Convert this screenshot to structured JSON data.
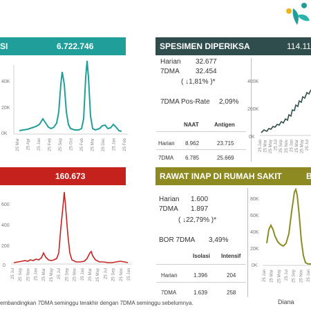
{
  "top_left": {
    "title": "SI",
    "value": "6.722.746",
    "color": "#1f9e9a",
    "yticks": [
      "40K",
      "20K",
      "0K"
    ],
    "xticks": [
      "25 Mar",
      "25 Apr",
      "25 Jan",
      "25 Feb",
      "25 Sep",
      "25 Oct",
      "25 Feb",
      "25 Mar",
      "25 Dec",
      "25 Jan",
      "25 Feb"
    ]
  },
  "top_right": {
    "title": "SPESIMEN DIPERIKSA",
    "value": "114.11",
    "harian_label": "Harian",
    "harian_value": "32.677",
    "dma_label": "7DMA",
    "dma_value": "32.454",
    "dma_change": "(   ↓1,81%   )*",
    "posrate_label": "7DMA Pos-Rate",
    "posrate_value": "2,09%",
    "table": {
      "headers": [
        "NAAT",
        "Antigen"
      ],
      "rows": [
        {
          "label": "Harian",
          "naat": "8.962",
          "antigen": "23.715"
        },
        {
          "label": "7DMA",
          "naat": "6.785",
          "antigen": "25.669"
        }
      ]
    },
    "yticks": [
      "400K",
      "200K",
      "0K"
    ],
    "xticks": [
      "25 Jan",
      "25 Mar",
      "25 May",
      "25 Jul",
      "25 Sep",
      "25 Nov",
      "25 Jan",
      "25 Mar",
      "25 May",
      "25 Jul"
    ]
  },
  "bottom_left": {
    "value": "160.673",
    "color": "#c6221d",
    "yticks": [
      "600",
      "400",
      "200",
      "0"
    ],
    "xticks": [
      "25 Jul",
      "25 Sep",
      "25 Nov",
      "25 Jan",
      "25 Mar",
      "25 May",
      "25 Jul",
      "25 Sep",
      "25 Nov",
      "25 Jan",
      "25 Mar",
      "25 May",
      "25 Jul",
      "25 Sep",
      "25 Nov",
      "25 Jan"
    ]
  },
  "bottom_right": {
    "title": "RAWAT INAP DI RUMAH SAKIT",
    "title_tail": "B",
    "harian_label": "Harian",
    "harian_value": "1.600",
    "dma_label": "7DMA",
    "dma_value": "1.897",
    "dma_change": "(  ↓22,79%  )*",
    "bor_label": "BOR 7DMA",
    "bor_value": "3,49%",
    "table": {
      "headers": [
        "Isolasi",
        "Intensif"
      ],
      "rows": [
        {
          "label": "Harian",
          "isolasi": "1.396",
          "intensif": "204"
        },
        {
          "label": "7DMA",
          "isolasi": "1.639",
          "intensif": "258"
        }
      ]
    },
    "yticks": [
      "80K",
      "60K",
      "40K",
      "20K",
      "0K"
    ],
    "xticks": [
      "25 Jan",
      "25 Mar",
      "25 May",
      "25 Jul",
      "25 Sep",
      "25 Nov",
      "25 Jan"
    ]
  },
  "footnote": "embandingkan 7DMA seminggu terakhir dengan 7DMA seminggu sebelumnya.",
  "footnote_right": "Diana"
}
